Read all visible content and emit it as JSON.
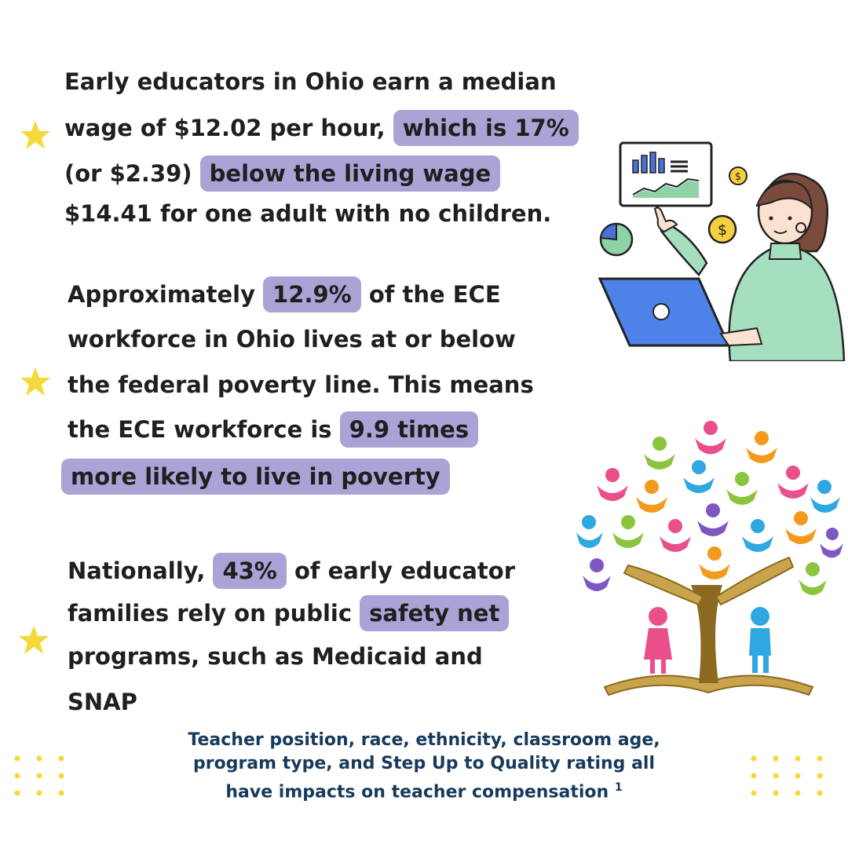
{
  "stat1": {
    "line1": "Early educators in Ohio earn a median",
    "line2_text": "wage of $12.02 per hour,",
    "line2_hl": "which is 17%",
    "line3_text": "(or $2.39)",
    "line3_hl": "below the living wage",
    "line4": "$14.41 for one adult with no children."
  },
  "stat2": {
    "line1_text": "Approximately",
    "line1_hl": "12.9%",
    "line1_tail": "of the ECE",
    "line2": "workforce in Ohio lives at or below",
    "line3": "the federal poverty line. This means",
    "line4_text": "the ECE workforce is",
    "line4_hl": "9.9 times",
    "line5_hl": "more likely to live in poverty"
  },
  "stat3": {
    "line1_text": "Nationally,",
    "line1_hl": "43%",
    "line1_tail": "of early educator",
    "line2_text": "families rely on public",
    "line2_hl": "safety net",
    "line3": "programs, such as Medicaid and",
    "line4": "SNAP"
  },
  "footer": {
    "line1": "Teacher position, race, ethnicity, classroom age,",
    "line2": "program type, and Step Up to Quality rating all",
    "line3": "have impacts on teacher compensation",
    "footnote": "1"
  },
  "colors": {
    "highlight": "#a9a3d6",
    "star": "#f5d93a",
    "footer_text": "#163a5c"
  },
  "icons": [
    "star-icon",
    "woman-laptop-illustration",
    "tree-of-children-illustration",
    "dot-grid"
  ]
}
